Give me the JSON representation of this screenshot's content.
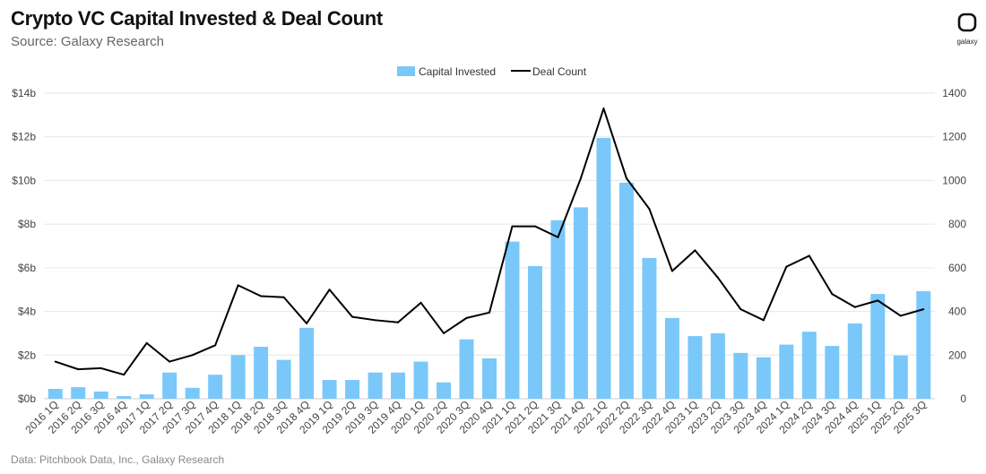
{
  "header": {
    "title": "Crypto VC Capital Invested & Deal Count",
    "subtitle": "Source: Galaxy Research",
    "logo_text": "galaxy"
  },
  "footer": {
    "source": "Data: Pitchbook Data, Inc., Galaxy Research"
  },
  "chart_data": {
    "type": "bar",
    "title": "Crypto VC Capital Invested & Deal Count",
    "categories": [
      "2016 1Q",
      "2016 2Q",
      "2016 3Q",
      "2016 4Q",
      "2017 1Q",
      "2017 2Q",
      "2017 3Q",
      "2017 4Q",
      "2018 1Q",
      "2018 2Q",
      "2018 3Q",
      "2018 4Q",
      "2019 1Q",
      "2019 2Q",
      "2019 3Q",
      "2019 4Q",
      "2020 1Q",
      "2020 2Q",
      "2020 3Q",
      "2020 4Q",
      "2021 1Q",
      "2021 2Q",
      "2021 3Q",
      "2021 4Q",
      "2022 1Q",
      "2022 2Q",
      "2022 3Q",
      "2022 4Q",
      "2023 1Q",
      "2023 2Q",
      "2023 3Q",
      "2023 4Q",
      "2024 1Q",
      "2024 2Q",
      "2024 3Q",
      "2024 4Q",
      "2025 1Q",
      "2025 2Q",
      "2025 3Q"
    ],
    "series": [
      {
        "name": "Capital Invested",
        "type": "bar",
        "axis": "left",
        "unit": "$b",
        "color": "#7ac8fa",
        "values": [
          0.45,
          0.53,
          0.33,
          0.12,
          0.2,
          1.2,
          0.5,
          1.1,
          2.0,
          2.38,
          1.78,
          3.25,
          0.86,
          0.86,
          1.2,
          1.2,
          1.7,
          0.75,
          2.72,
          1.85,
          7.2,
          6.08,
          8.18,
          8.77,
          11.95,
          9.9,
          6.45,
          3.7,
          2.87,
          3.0,
          2.1,
          1.9,
          2.48,
          3.07,
          2.42,
          3.45,
          4.8,
          1.98,
          4.93
        ]
      },
      {
        "name": "Deal Count",
        "type": "line",
        "axis": "right",
        "color": "#000000",
        "values": [
          170,
          135,
          140,
          110,
          255,
          170,
          200,
          245,
          520,
          470,
          465,
          345,
          500,
          375,
          360,
          350,
          440,
          300,
          370,
          395,
          790,
          790,
          740,
          1010,
          1330,
          1010,
          870,
          585,
          680,
          555,
          410,
          360,
          605,
          655,
          480,
          420,
          450,
          380,
          410
        ]
      }
    ],
    "y_left": {
      "range": [
        0,
        14
      ],
      "ticks": [
        "$0b",
        "$2b",
        "$4b",
        "$6b",
        "$8b",
        "$10b",
        "$12b",
        "$14b"
      ]
    },
    "y_right": {
      "range": [
        0,
        1400
      ],
      "ticks": [
        "0",
        "200",
        "400",
        "600",
        "800",
        "1000",
        "1200",
        "1400"
      ]
    },
    "grid": true,
    "legend": "top-center"
  }
}
